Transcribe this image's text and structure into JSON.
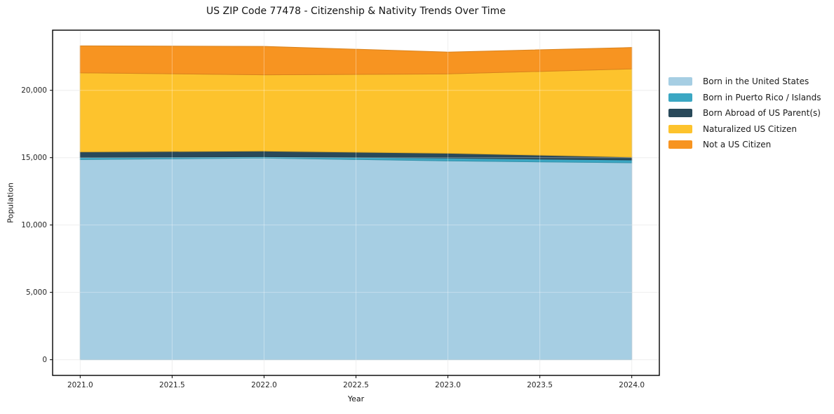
{
  "page": {
    "background": "#ffffff"
  },
  "chart_data": {
    "type": "area",
    "stacked": true,
    "title": "US ZIP Code 77478 - Citizenship & Nativity Trends Over Time",
    "xlabel": "Year",
    "ylabel": "Population",
    "x": [
      2021,
      2022,
      2023,
      2024
    ],
    "series": [
      {
        "name": "Born in the United States",
        "color": "#a6cee3",
        "values": [
          14860,
          14970,
          14760,
          14620
        ]
      },
      {
        "name": "Born in Puerto Rico / Islands",
        "color": "#3ba7c3",
        "values": [
          150,
          105,
          210,
          210
        ]
      },
      {
        "name": "Born Abroad of US Parent(s)",
        "color": "#29495a",
        "values": [
          420,
          415,
          360,
          210
        ]
      },
      {
        "name": "Naturalized US Citizen",
        "color": "#fdc32d",
        "values": [
          5870,
          5660,
          5890,
          6550
        ]
      },
      {
        "name": "Not a US Citizen",
        "color": "#f79421",
        "values": [
          2000,
          2110,
          1620,
          1590
        ]
      }
    ],
    "totals": [
      23300,
      23260,
      22840,
      23180
    ],
    "x_ticks": {
      "values": [
        2021.0,
        2021.5,
        2022.0,
        2022.5,
        2023.0,
        2023.5,
        2024.0
      ],
      "labels": [
        "2021.0",
        "2021.5",
        "2022.0",
        "2022.5",
        "2023.0",
        "2023.5",
        "2024.0"
      ]
    },
    "y_ticks": {
      "values": [
        0,
        5000,
        10000,
        15000,
        20000
      ],
      "labels": [
        "0",
        "5,000",
        "10,000",
        "15,000",
        "20,000"
      ]
    },
    "xlim": [
      2020.85,
      2024.15
    ],
    "ylim": [
      -1165,
      24465
    ],
    "grid": true,
    "legend_position": "right-outside",
    "colors": {
      "grid_below": "#e8e8e8",
      "grid_overlay": "rgba(255,255,255,0.35)",
      "spine": "#000000",
      "tick_text": "#262626"
    }
  }
}
